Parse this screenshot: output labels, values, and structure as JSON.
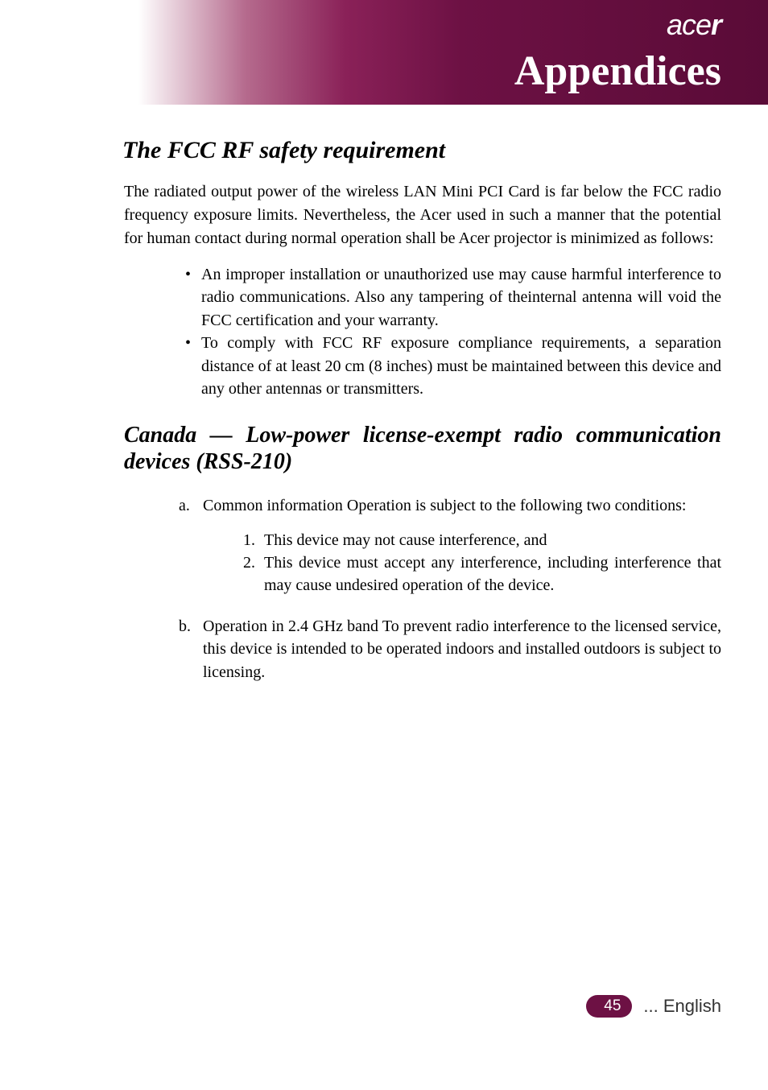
{
  "colors": {
    "brand_gradient_start": "#ffffff",
    "brand_gradient_end": "#5a0b37",
    "pill_bg": "#6d1144",
    "text": "#000000"
  },
  "header": {
    "brand_light": "ace",
    "brand_bold": "r",
    "chapter_title": "Appendices"
  },
  "section1": {
    "heading": "The FCC RF safety requirement",
    "paragraph": "The radiated output power of the wireless LAN Mini PCI Card is far below the FCC radio frequency exposure limits. Nevertheless, the Acer used in such a manner that the potential for human contact during normal   operation shall be Acer projector is minimized as follows:",
    "bullets": [
      "An improper installation or unauthorized use may cause harmful interference to radio communications. Also any tampering of theinternal antenna will void the FCC certification and your warranty.",
      "To comply with FCC RF exposure compliance requirements, a separation distance of at least 20 cm (8 inches) must be maintained between this device and any other antennas or transmitters."
    ]
  },
  "section2": {
    "heading": "Canada — Low-power license-exempt radio communication devices (RSS-210)",
    "items": [
      {
        "marker": "a.",
        "text": "Common information Operation is subject to the following two conditions:",
        "numbers": [
          {
            "marker": "1.",
            "text": "This device may not cause interference, and"
          },
          {
            "marker": "2.",
            "text": "This device must accept any interference, including interference that may cause undesired operation of the device."
          }
        ]
      },
      {
        "marker": "b.",
        "text": "Operation in 2.4 GHz band To prevent radio interference to the licensed service, this device is intended to be operated indoors and installed outdoors is subject to licensing.",
        "numbers": []
      }
    ]
  },
  "footer": {
    "page_number": "45",
    "language": "... English"
  }
}
